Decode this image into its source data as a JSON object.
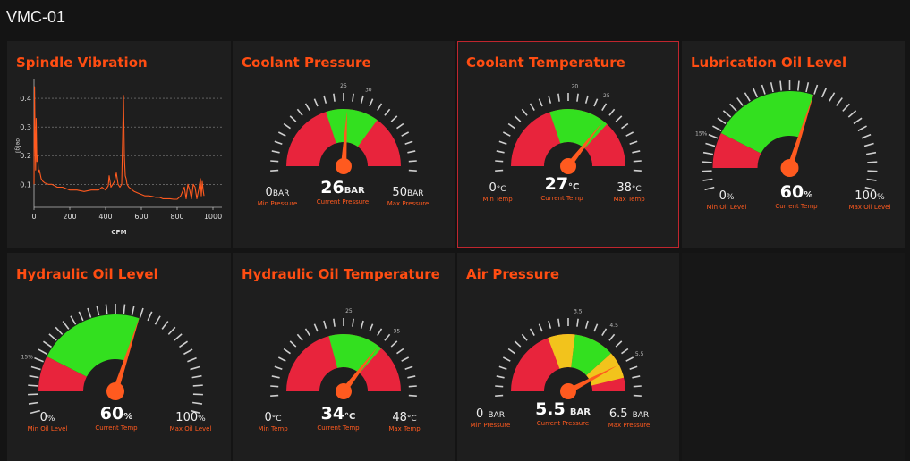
{
  "app": {
    "title": "VMC-01"
  },
  "colors": {
    "accent": "#ff4d12",
    "red": "#e8243c",
    "green": "#33e01f",
    "yellow": "#f2c31c",
    "needle": "#ff5a1f",
    "panel": "#1e1e1e"
  },
  "chart_data": {
    "type": "line",
    "title": "Spindle Vibration",
    "xlabel": "CPM",
    "ylabel": "σe[g]",
    "xlim": [
      0,
      1050
    ],
    "ylim": [
      0.02,
      0.45
    ],
    "xticks": [
      "0",
      "200",
      "400",
      "600",
      "800",
      "1000"
    ],
    "yticks": [
      "0.1",
      "0.2",
      "0.3",
      "0.4"
    ],
    "grid": "horizontal dashed",
    "series": [
      {
        "name": "vibration",
        "x": [
          0,
          3,
          6,
          9,
          12,
          16,
          20,
          25,
          30,
          40,
          50,
          60,
          80,
          100,
          130,
          160,
          200,
          240,
          280,
          320,
          360,
          380,
          400,
          415,
          420,
          430,
          440,
          450,
          460,
          470,
          480,
          490,
          495,
          500,
          505,
          510,
          515,
          520,
          530,
          540,
          550,
          560,
          580,
          600,
          620,
          640,
          660,
          680,
          700,
          720,
          740,
          760,
          780,
          800,
          820,
          840,
          850,
          860,
          870,
          880,
          890,
          900,
          910,
          920,
          930,
          935,
          940,
          945,
          950
        ],
        "y": [
          0.1,
          0.44,
          0.25,
          0.15,
          0.33,
          0.18,
          0.2,
          0.14,
          0.15,
          0.12,
          0.11,
          0.105,
          0.1,
          0.1,
          0.09,
          0.09,
          0.08,
          0.08,
          0.075,
          0.08,
          0.08,
          0.09,
          0.08,
          0.095,
          0.13,
          0.09,
          0.1,
          0.11,
          0.14,
          0.1,
          0.09,
          0.1,
          0.25,
          0.41,
          0.2,
          0.13,
          0.12,
          0.1,
          0.09,
          0.085,
          0.08,
          0.075,
          0.07,
          0.065,
          0.06,
          0.06,
          0.058,
          0.055,
          0.055,
          0.05,
          0.05,
          0.05,
          0.048,
          0.048,
          0.06,
          0.09,
          0.05,
          0.1,
          0.08,
          0.05,
          0.1,
          0.09,
          0.05,
          0.08,
          0.12,
          0.06,
          0.11,
          0.08,
          0.06
        ]
      }
    ]
  },
  "panels": {
    "spindle": {
      "title": "Spindle Vibration"
    },
    "coolant_pressure": {
      "title": "Coolant Pressure",
      "min": 0,
      "max": 50,
      "value": 26,
      "green_range": [
        20,
        35
      ],
      "tick_labels": [
        "25",
        "30"
      ],
      "min_label": "0",
      "max_label": "50",
      "current_label": "26",
      "unit": "BAR",
      "min_caption": "Min Pressure",
      "current_caption": "Current Pressure",
      "max_caption": "Max Pressure"
    },
    "coolant_temp": {
      "title": "Coolant Temperature",
      "min": 0,
      "max": 38,
      "value": 27,
      "green_range": [
        15,
        28
      ],
      "tick_labels": [
        "20",
        "25"
      ],
      "min_label": "0",
      "max_label": "38",
      "current_label": "27",
      "unit": "°C",
      "min_caption": "Min Temp",
      "current_caption": "Current Temp",
      "max_caption": "Max Temp"
    },
    "lube_oil": {
      "title": "Lubrication Oil Level",
      "min": 0,
      "max": 100,
      "value": 60,
      "red_range": [
        0,
        15
      ],
      "green_range": [
        15,
        60
      ],
      "tick_labels": [
        "15%"
      ],
      "min_label": "0",
      "max_label": "100",
      "current_label": "60",
      "unit": "%",
      "min_caption": "Min Oil Level",
      "current_caption": "Current Temp",
      "max_caption": "Max Oil Level"
    },
    "hyd_oil": {
      "title": "Hydraulic Oil Level",
      "min": 0,
      "max": 100,
      "value": 60,
      "red_range": [
        0,
        15
      ],
      "green_range": [
        15,
        60
      ],
      "tick_labels": [
        "15%"
      ],
      "min_label": "0",
      "max_label": "100",
      "current_label": "60",
      "unit": "%",
      "min_caption": "Min Oil Level",
      "current_caption": "Current Temp",
      "max_caption": "Max Oil Level"
    },
    "hyd_temp": {
      "title": "Hydraulic Oil Temperature",
      "min": 0,
      "max": 48,
      "value": 34,
      "green_range": [
        20,
        35
      ],
      "tick_labels": [
        "25",
        "35"
      ],
      "min_label": "0",
      "max_label": "48",
      "current_label": "34",
      "unit": "°C",
      "min_caption": "Min Temp",
      "current_caption": "Current Temp",
      "max_caption": "Max Temp"
    },
    "air_pressure": {
      "title": "Air Pressure",
      "min": 0,
      "max": 6.5,
      "value": 5.5,
      "yellow_ranges": [
        [
          2.5,
          3.5
        ],
        [
          5.0,
          6.0
        ]
      ],
      "green_range": [
        3.5,
        5.0
      ],
      "tick_labels": [
        "3.5",
        "4.5",
        "5.5"
      ],
      "min_label": "0",
      "max_label": "6.5",
      "current_label": "5.5",
      "unit": "BAR",
      "min_caption": "Min Pressure",
      "current_caption": "Current Pressure",
      "max_caption": "Max Pressure"
    }
  }
}
